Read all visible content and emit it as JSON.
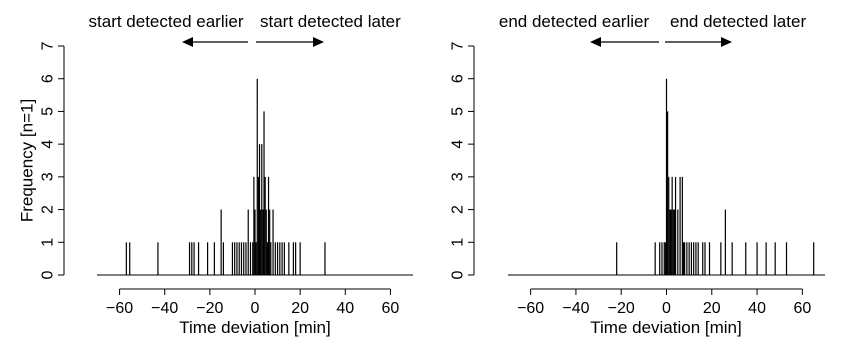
{
  "chart_data": [
    {
      "type": "bar",
      "ylabel": "Frequency [n=1]",
      "xlabel": "Time deviation [min]",
      "xlim": [
        -70,
        70
      ],
      "ylim": [
        0,
        7
      ],
      "xticks": [
        -60,
        -40,
        -20,
        0,
        20,
        40,
        60
      ],
      "yticks": [
        0,
        1,
        2,
        3,
        4,
        5,
        6,
        7
      ],
      "annotation_left": "start detected earlier",
      "annotation_right": "start detected later",
      "spikes": [
        {
          "x": -57,
          "y": 1
        },
        {
          "x": -55.5,
          "y": 1
        },
        {
          "x": -43,
          "y": 1
        },
        {
          "x": -29,
          "y": 1
        },
        {
          "x": -28,
          "y": 1
        },
        {
          "x": -27,
          "y": 1
        },
        {
          "x": -25,
          "y": 1
        },
        {
          "x": -21,
          "y": 1
        },
        {
          "x": -18,
          "y": 1
        },
        {
          "x": -15,
          "y": 2
        },
        {
          "x": -14,
          "y": 1
        },
        {
          "x": -10,
          "y": 1
        },
        {
          "x": -9,
          "y": 1
        },
        {
          "x": -8,
          "y": 1
        },
        {
          "x": -7,
          "y": 1
        },
        {
          "x": -6,
          "y": 1
        },
        {
          "x": -5,
          "y": 1
        },
        {
          "x": -4,
          "y": 1
        },
        {
          "x": -3,
          "y": 2
        },
        {
          "x": -2,
          "y": 1
        },
        {
          "x": -1,
          "y": 1
        },
        {
          "x": -0.5,
          "y": 3
        },
        {
          "x": 0,
          "y": 2
        },
        {
          "x": 0.5,
          "y": 1
        },
        {
          "x": 1,
          "y": 6
        },
        {
          "x": 1.5,
          "y": 3
        },
        {
          "x": 2,
          "y": 4
        },
        {
          "x": 2.5,
          "y": 2
        },
        {
          "x": 3,
          "y": 4
        },
        {
          "x": 3.5,
          "y": 2
        },
        {
          "x": 4,
          "y": 5
        },
        {
          "x": 4.5,
          "y": 3
        },
        {
          "x": 5,
          "y": 2
        },
        {
          "x": 5.5,
          "y": 1
        },
        {
          "x": 6,
          "y": 3
        },
        {
          "x": 6.5,
          "y": 2
        },
        {
          "x": 7,
          "y": 1
        },
        {
          "x": 8,
          "y": 2
        },
        {
          "x": 9,
          "y": 1
        },
        {
          "x": 10,
          "y": 1
        },
        {
          "x": 11,
          "y": 1
        },
        {
          "x": 12,
          "y": 1
        },
        {
          "x": 13,
          "y": 1
        },
        {
          "x": 15,
          "y": 1
        },
        {
          "x": 17,
          "y": 1
        },
        {
          "x": 18,
          "y": 1
        },
        {
          "x": 20,
          "y": 1
        },
        {
          "x": 31,
          "y": 1
        }
      ]
    },
    {
      "type": "bar",
      "ylabel": "",
      "xlabel": "Time deviation [min]",
      "xlim": [
        -70,
        70
      ],
      "ylim": [
        0,
        7
      ],
      "xticks": [
        -60,
        -40,
        -20,
        0,
        20,
        40,
        60
      ],
      "yticks": [
        0,
        1,
        2,
        3,
        4,
        5,
        6,
        7
      ],
      "annotation_left": "end detected earlier",
      "annotation_right": "end detected later",
      "spikes": [
        {
          "x": -22,
          "y": 1
        },
        {
          "x": -5,
          "y": 1
        },
        {
          "x": -3,
          "y": 1
        },
        {
          "x": -2,
          "y": 1
        },
        {
          "x": -1,
          "y": 1
        },
        {
          "x": -0.5,
          "y": 1
        },
        {
          "x": 0,
          "y": 6
        },
        {
          "x": 0.5,
          "y": 5
        },
        {
          "x": 1,
          "y": 3
        },
        {
          "x": 1.5,
          "y": 2
        },
        {
          "x": 2,
          "y": 2
        },
        {
          "x": 2.5,
          "y": 3
        },
        {
          "x": 3,
          "y": 2
        },
        {
          "x": 3.5,
          "y": 2
        },
        {
          "x": 4,
          "y": 3
        },
        {
          "x": 5,
          "y": 2
        },
        {
          "x": 6,
          "y": 3
        },
        {
          "x": 7,
          "y": 3
        },
        {
          "x": 7.5,
          "y": 1
        },
        {
          "x": 8,
          "y": 1
        },
        {
          "x": 9,
          "y": 1
        },
        {
          "x": 10,
          "y": 1
        },
        {
          "x": 11,
          "y": 1
        },
        {
          "x": 12,
          "y": 1
        },
        {
          "x": 13,
          "y": 1
        },
        {
          "x": 14,
          "y": 1
        },
        {
          "x": 16,
          "y": 1
        },
        {
          "x": 17,
          "y": 1
        },
        {
          "x": 19,
          "y": 1
        },
        {
          "x": 24,
          "y": 1
        },
        {
          "x": 26,
          "y": 2
        },
        {
          "x": 29,
          "y": 1
        },
        {
          "x": 35,
          "y": 1
        },
        {
          "x": 40,
          "y": 1
        },
        {
          "x": 44,
          "y": 1
        },
        {
          "x": 48,
          "y": 1
        },
        {
          "x": 53,
          "y": 1
        },
        {
          "x": 65,
          "y": 1
        }
      ]
    }
  ]
}
